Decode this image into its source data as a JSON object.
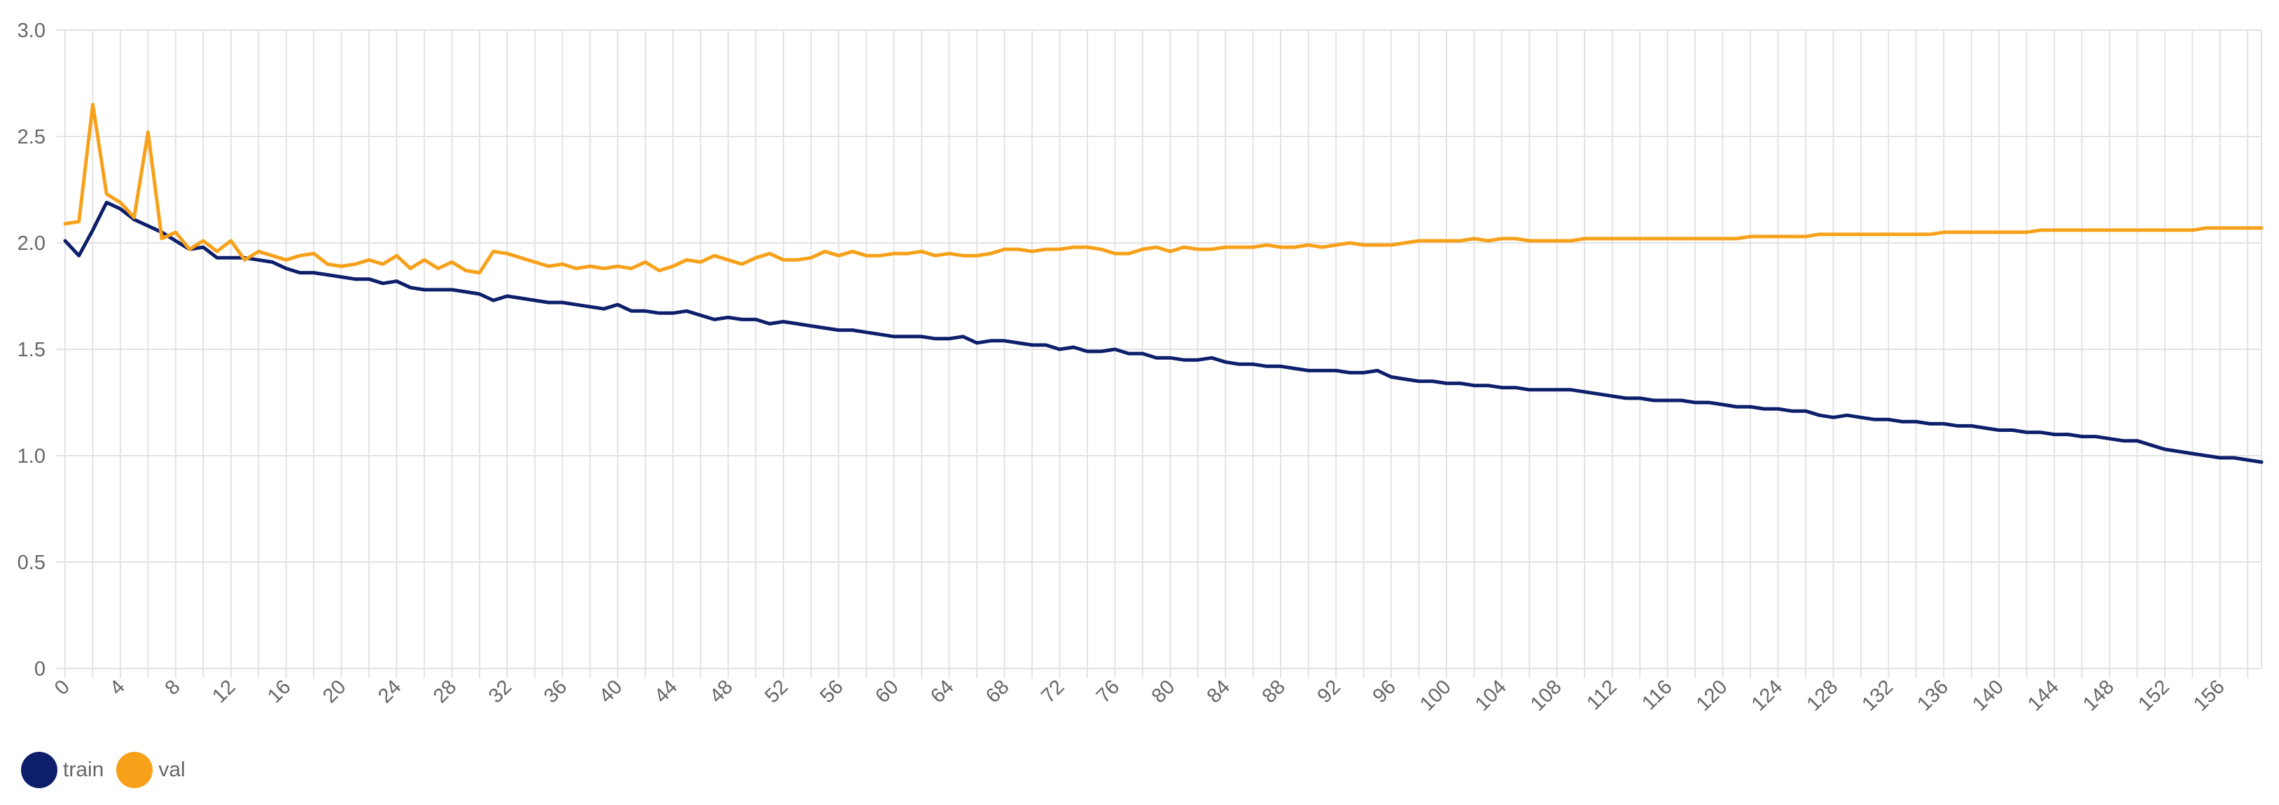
{
  "chart_data": {
    "type": "line",
    "x": [
      0,
      1,
      2,
      3,
      4,
      5,
      6,
      7,
      8,
      9,
      10,
      11,
      12,
      13,
      14,
      15,
      16,
      17,
      18,
      19,
      20,
      21,
      22,
      23,
      24,
      25,
      26,
      27,
      28,
      29,
      30,
      31,
      32,
      33,
      34,
      35,
      36,
      37,
      38,
      39,
      40,
      41,
      42,
      43,
      44,
      45,
      46,
      47,
      48,
      49,
      50,
      51,
      52,
      53,
      54,
      55,
      56,
      57,
      58,
      59,
      60,
      61,
      62,
      63,
      64,
      65,
      66,
      67,
      68,
      69,
      70,
      71,
      72,
      73,
      74,
      75,
      76,
      77,
      78,
      79,
      80,
      81,
      82,
      83,
      84,
      85,
      86,
      87,
      88,
      89,
      90,
      91,
      92,
      93,
      94,
      95,
      96,
      97,
      98,
      99,
      100,
      101,
      102,
      103,
      104,
      105,
      106,
      107,
      108,
      109,
      110,
      111,
      112,
      113,
      114,
      115,
      116,
      117,
      118,
      119,
      120,
      121,
      122,
      123,
      124,
      125,
      126,
      127,
      128,
      129,
      130,
      131,
      132,
      133,
      134,
      135,
      136,
      137,
      138,
      139,
      140,
      141,
      142,
      143,
      144,
      145,
      146,
      147,
      148,
      149,
      150,
      151,
      152,
      153,
      154,
      155,
      156,
      157,
      158,
      159
    ],
    "x_ticks": [
      "0",
      "4",
      "8",
      "12",
      "16",
      "20",
      "24",
      "28",
      "32",
      "36",
      "40",
      "44",
      "48",
      "52",
      "56",
      "60",
      "64",
      "68",
      "72",
      "76",
      "80",
      "84",
      "88",
      "92",
      "96",
      "100",
      "104",
      "108",
      "112",
      "116",
      "120",
      "124",
      "128",
      "132",
      "136",
      "140",
      "144",
      "148",
      "152",
      "156"
    ],
    "y_ticks": [
      "3.0",
      "2.5",
      "2.0",
      "1.5",
      "1.0",
      "0.5",
      "0"
    ],
    "ylim": [
      0,
      3.0
    ],
    "xlim": [
      0,
      159
    ],
    "grid": true,
    "legend_position": "bottom-left",
    "series": [
      {
        "name": "train",
        "color": "#0d1f6b",
        "values": [
          2.01,
          1.94,
          2.06,
          2.19,
          2.16,
          2.11,
          2.08,
          2.05,
          2.01,
          1.97,
          1.98,
          1.93,
          1.93,
          1.93,
          1.92,
          1.91,
          1.88,
          1.86,
          1.86,
          1.85,
          1.84,
          1.83,
          1.83,
          1.81,
          1.82,
          1.79,
          1.78,
          1.78,
          1.78,
          1.77,
          1.76,
          1.73,
          1.75,
          1.74,
          1.73,
          1.72,
          1.72,
          1.71,
          1.7,
          1.69,
          1.71,
          1.68,
          1.68,
          1.67,
          1.67,
          1.68,
          1.66,
          1.64,
          1.65,
          1.64,
          1.64,
          1.62,
          1.63,
          1.62,
          1.61,
          1.6,
          1.59,
          1.59,
          1.58,
          1.57,
          1.56,
          1.56,
          1.56,
          1.55,
          1.55,
          1.56,
          1.53,
          1.54,
          1.54,
          1.53,
          1.52,
          1.52,
          1.5,
          1.51,
          1.49,
          1.49,
          1.5,
          1.48,
          1.48,
          1.46,
          1.46,
          1.45,
          1.45,
          1.46,
          1.44,
          1.43,
          1.43,
          1.42,
          1.42,
          1.41,
          1.4,
          1.4,
          1.4,
          1.39,
          1.39,
          1.4,
          1.37,
          1.36,
          1.35,
          1.35,
          1.34,
          1.34,
          1.33,
          1.33,
          1.32,
          1.32,
          1.31,
          1.31,
          1.31,
          1.31,
          1.3,
          1.29,
          1.28,
          1.27,
          1.27,
          1.26,
          1.26,
          1.26,
          1.25,
          1.25,
          1.24,
          1.23,
          1.23,
          1.22,
          1.22,
          1.21,
          1.21,
          1.19,
          1.18,
          1.19,
          1.18,
          1.17,
          1.17,
          1.16,
          1.16,
          1.15,
          1.15,
          1.14,
          1.14,
          1.13,
          1.12,
          1.12,
          1.11,
          1.11,
          1.1,
          1.1,
          1.09,
          1.09,
          1.08,
          1.07,
          1.07,
          1.05,
          1.03,
          1.02,
          1.01,
          1.0,
          0.99,
          0.99,
          0.98,
          0.97
        ]
      },
      {
        "name": "val",
        "color": "#f7a11a",
        "values": [
          2.09,
          2.1,
          2.65,
          2.23,
          2.19,
          2.12,
          2.52,
          2.02,
          2.05,
          1.97,
          2.01,
          1.96,
          2.01,
          1.92,
          1.96,
          1.94,
          1.92,
          1.94,
          1.95,
          1.9,
          1.89,
          1.9,
          1.92,
          1.9,
          1.94,
          1.88,
          1.92,
          1.88,
          1.91,
          1.87,
          1.86,
          1.96,
          1.95,
          1.93,
          1.91,
          1.89,
          1.9,
          1.88,
          1.89,
          1.88,
          1.89,
          1.88,
          1.91,
          1.87,
          1.89,
          1.92,
          1.91,
          1.94,
          1.92,
          1.9,
          1.93,
          1.95,
          1.92,
          1.92,
          1.93,
          1.96,
          1.94,
          1.96,
          1.94,
          1.94,
          1.95,
          1.95,
          1.96,
          1.94,
          1.95,
          1.94,
          1.94,
          1.95,
          1.97,
          1.97,
          1.96,
          1.97,
          1.97,
          1.98,
          1.98,
          1.97,
          1.95,
          1.95,
          1.97,
          1.98,
          1.96,
          1.98,
          1.97,
          1.97,
          1.98,
          1.98,
          1.98,
          1.99,
          1.98,
          1.98,
          1.99,
          1.98,
          1.99,
          2.0,
          1.99,
          1.99,
          1.99,
          2.0,
          2.01,
          2.01,
          2.01,
          2.01,
          2.02,
          2.01,
          2.02,
          2.02,
          2.01,
          2.01,
          2.01,
          2.01,
          2.02,
          2.02,
          2.02,
          2.02,
          2.02,
          2.02,
          2.02,
          2.02,
          2.02,
          2.02,
          2.02,
          2.02,
          2.03,
          2.03,
          2.03,
          2.03,
          2.03,
          2.04,
          2.04,
          2.04,
          2.04,
          2.04,
          2.04,
          2.04,
          2.04,
          2.04,
          2.05,
          2.05,
          2.05,
          2.05,
          2.05,
          2.05,
          2.05,
          2.06,
          2.06,
          2.06,
          2.06,
          2.06,
          2.06,
          2.06,
          2.06,
          2.06,
          2.06,
          2.06,
          2.06,
          2.07,
          2.07,
          2.07,
          2.07,
          2.07
        ]
      }
    ]
  }
}
